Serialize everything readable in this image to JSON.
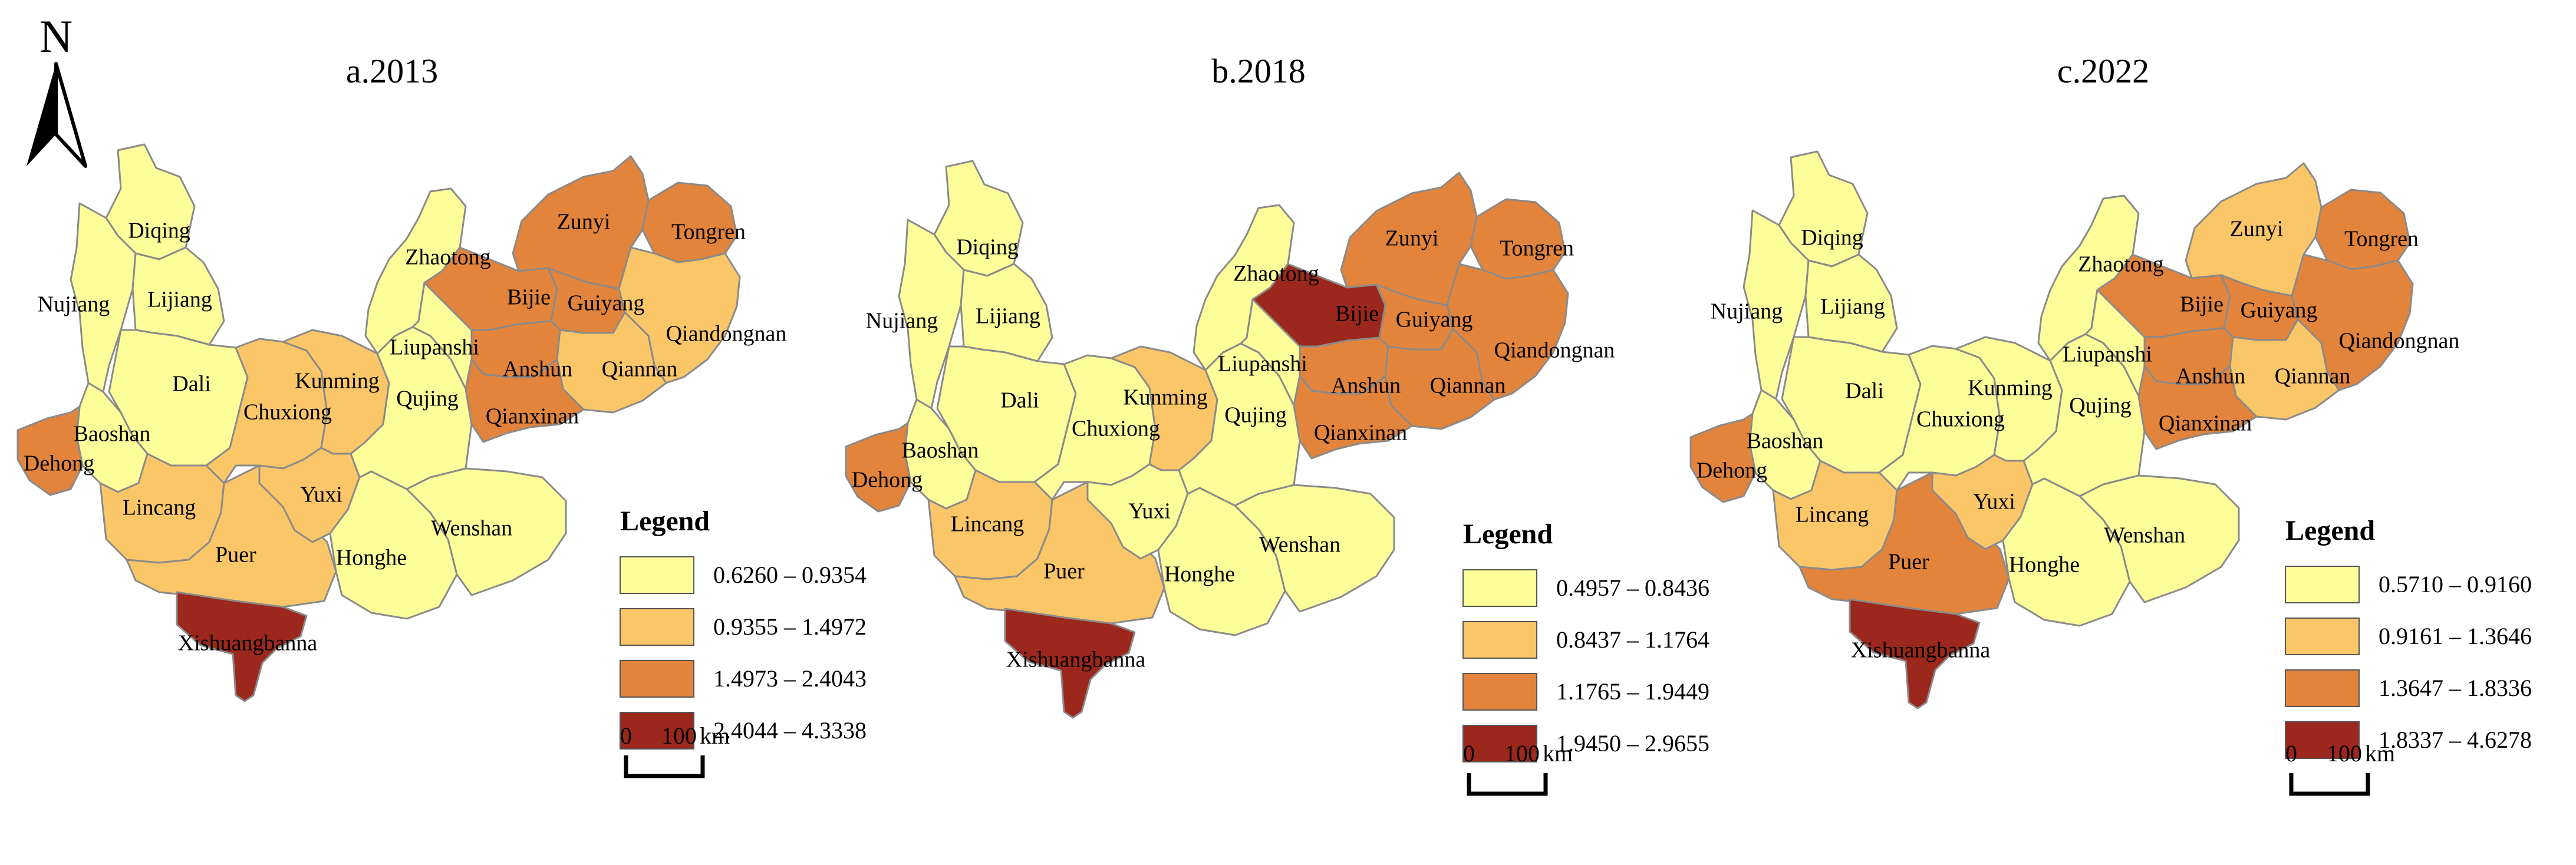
{
  "north_arrow": {
    "label": "N"
  },
  "colors": {
    "class1": "#fdfd9a",
    "class2": "#fbc668",
    "class3": "#e3843c",
    "class4": "#9c271c",
    "border": "#8a8a8a"
  },
  "maps": [
    {
      "title": "a.2013",
      "legend": {
        "title": "Legend",
        "classes": [
          "0.6260 – 0.9354",
          "0.9355 – 1.4972",
          "1.4973 – 2.4043",
          "2.4044 – 4.3338"
        ]
      },
      "scale": {
        "start": "0",
        "end": "100",
        "unit": "km"
      },
      "regions": {
        "Diqing": 1,
        "Nujiang": 1,
        "Lijiang": 1,
        "Dali": 1,
        "Baoshan": 1,
        "Dehong": 3,
        "Lincang": 2,
        "Puer": 2,
        "Xishuangbanna": 4,
        "Chuxiong": 2,
        "Kunming": 2,
        "Yuxi": 2,
        "Honghe": 1,
        "Wenshan": 1,
        "Qujing": 1,
        "Zhaotong": 1,
        "Liupanshi": 1,
        "Bijie": 3,
        "Guiyang": 3,
        "Anshun": 3,
        "Zunyi": 3,
        "Tongren": 3,
        "Qiandongnan": 2,
        "Qiannan": 2,
        "Qianxinan": 3
      }
    },
    {
      "title": "b.2018",
      "legend": {
        "title": "Legend",
        "classes": [
          "0.4957 – 0.8436",
          "0.8437 – 1.1764",
          "1.1765 – 1.9449",
          "1.9450 – 2.9655"
        ]
      },
      "scale": {
        "start": "0",
        "end": "100",
        "unit": "km"
      },
      "regions": {
        "Diqing": 1,
        "Nujiang": 1,
        "Lijiang": 1,
        "Dali": 1,
        "Baoshan": 1,
        "Dehong": 3,
        "Lincang": 2,
        "Puer": 2,
        "Xishuangbanna": 4,
        "Chuxiong": 1,
        "Kunming": 2,
        "Yuxi": 1,
        "Honghe": 1,
        "Wenshan": 1,
        "Qujing": 1,
        "Zhaotong": 1,
        "Liupanshi": 1,
        "Bijie": 4,
        "Guiyang": 3,
        "Anshun": 3,
        "Zunyi": 3,
        "Tongren": 3,
        "Qiandongnan": 3,
        "Qiannan": 3,
        "Qianxinan": 3
      }
    },
    {
      "title": "c.2022",
      "legend": {
        "title": "Legend",
        "classes": [
          "0.5710 – 0.9160",
          "0.9161 – 1.3646",
          "1.3647 – 1.8336",
          "1.8337 – 4.6278"
        ]
      },
      "scale": {
        "start": "0",
        "end": "100",
        "unit": "km"
      },
      "regions": {
        "Diqing": 1,
        "Nujiang": 1,
        "Lijiang": 1,
        "Dali": 1,
        "Baoshan": 1,
        "Dehong": 3,
        "Lincang": 2,
        "Puer": 3,
        "Xishuangbanna": 4,
        "Chuxiong": 1,
        "Kunming": 1,
        "Yuxi": 2,
        "Honghe": 1,
        "Wenshan": 1,
        "Qujing": 1,
        "Zhaotong": 1,
        "Liupanshi": 1,
        "Bijie": 3,
        "Guiyang": 3,
        "Anshun": 3,
        "Zunyi": 2,
        "Tongren": 3,
        "Qiandongnan": 3,
        "Qiannan": 2,
        "Qianxinan": 3
      }
    }
  ]
}
